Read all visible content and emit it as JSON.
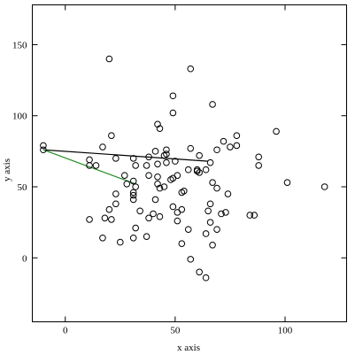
{
  "chart_data": {
    "type": "scatter",
    "xlabel": "x axis",
    "ylabel": "y axis",
    "xlim": [
      -15,
      128
    ],
    "ylim": [
      -45,
      178
    ],
    "xticks": [
      0,
      50,
      100
    ],
    "yticks": [
      0,
      50,
      100,
      150
    ],
    "grid": false,
    "point_color": "#000000",
    "series": [
      {
        "type": "scatter",
        "points": [
          [
            20,
            140
          ],
          [
            57,
            133
          ],
          [
            49,
            114
          ],
          [
            67,
            108
          ],
          [
            49,
            102
          ],
          [
            42,
            94
          ],
          [
            43,
            91
          ],
          [
            96,
            89
          ],
          [
            78,
            86
          ],
          [
            21,
            86
          ],
          [
            72,
            82
          ],
          [
            78,
            79
          ],
          [
            75,
            78
          ],
          [
            17,
            78
          ],
          [
            57,
            77
          ],
          [
            69,
            76
          ],
          [
            46,
            76
          ],
          [
            -10,
            79
          ],
          [
            -10,
            76
          ],
          [
            46,
            73
          ],
          [
            41,
            75
          ],
          [
            61,
            72
          ],
          [
            45,
            72
          ],
          [
            38,
            71
          ],
          [
            31,
            70
          ],
          [
            88,
            71
          ],
          [
            23,
            70
          ],
          [
            50,
            68
          ],
          [
            46,
            67
          ],
          [
            42,
            66
          ],
          [
            37,
            65
          ],
          [
            32,
            65
          ],
          [
            11,
            69
          ],
          [
            14,
            65
          ],
          [
            11,
            65
          ],
          [
            88,
            65
          ],
          [
            66,
            67
          ],
          [
            56,
            62
          ],
          [
            64,
            62
          ],
          [
            60,
            62
          ],
          [
            60,
            61
          ],
          [
            61,
            60
          ],
          [
            38,
            58
          ],
          [
            27,
            58
          ],
          [
            42,
            57
          ],
          [
            51,
            58
          ],
          [
            49,
            56
          ],
          [
            48,
            55
          ],
          [
            31,
            54
          ],
          [
            42,
            52
          ],
          [
            67,
            53
          ],
          [
            28,
            52
          ],
          [
            32,
            50
          ],
          [
            45,
            50
          ],
          [
            69,
            49
          ],
          [
            43,
            49
          ],
          [
            101,
            53
          ],
          [
            118,
            50
          ],
          [
            74,
            45
          ],
          [
            53,
            46
          ],
          [
            23,
            45
          ],
          [
            31,
            46
          ],
          [
            31,
            44
          ],
          [
            54,
            47
          ],
          [
            41,
            41
          ],
          [
            31,
            41
          ],
          [
            66,
            38
          ],
          [
            23,
            38
          ],
          [
            49,
            36
          ],
          [
            53,
            34
          ],
          [
            20,
            34
          ],
          [
            65,
            33
          ],
          [
            34,
            33
          ],
          [
            51,
            32
          ],
          [
            73,
            32
          ],
          [
            71,
            31
          ],
          [
            40,
            31
          ],
          [
            84,
            30
          ],
          [
            86,
            30
          ],
          [
            43,
            29
          ],
          [
            18,
            28
          ],
          [
            38,
            28
          ],
          [
            11,
            27
          ],
          [
            21,
            27
          ],
          [
            51,
            26
          ],
          [
            66,
            25
          ],
          [
            32,
            21
          ],
          [
            56,
            20
          ],
          [
            69,
            20
          ],
          [
            64,
            17
          ],
          [
            17,
            14
          ],
          [
            31,
            14
          ],
          [
            37,
            15
          ],
          [
            25,
            11
          ],
          [
            53,
            10
          ],
          [
            67,
            9
          ],
          [
            57,
            -1
          ],
          [
            61,
            -10
          ],
          [
            64,
            -14
          ]
        ]
      }
    ],
    "lines": [
      {
        "from": [
          -10,
          76
        ],
        "to": [
          65,
          68
        ],
        "color": "#000000"
      },
      {
        "from": [
          -10,
          76
        ],
        "to": [
          32,
          52
        ],
        "color": "#238b23"
      }
    ]
  }
}
